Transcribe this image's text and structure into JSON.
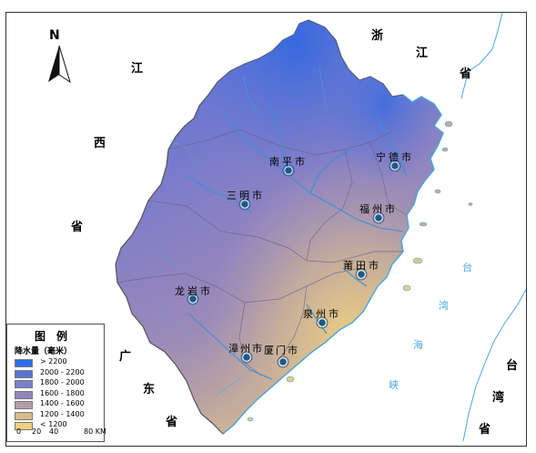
{
  "north_label": "N",
  "province_labels": {
    "jiangxi": [
      "江",
      "西",
      "省"
    ],
    "zhejiang": [
      "浙",
      "江",
      "省"
    ],
    "guangdong": [
      "广",
      "东",
      "省"
    ],
    "taiwan": [
      "台",
      "湾",
      "省"
    ]
  },
  "sea_labels": [
    "台",
    "湾",
    "海",
    "峡"
  ],
  "cities": [
    {
      "name": "南平市"
    },
    {
      "name": "宁德市"
    },
    {
      "name": "三明市"
    },
    {
      "name": "福州市"
    },
    {
      "name": "莆田市"
    },
    {
      "name": "龙岩市"
    },
    {
      "name": "泉州市"
    },
    {
      "name": "漳州市"
    },
    {
      "name": "厦门市"
    }
  ],
  "legend": {
    "title": "图例",
    "subtitle": "降水量（毫米）",
    "classes": [
      {
        "label": "> 2200",
        "color": "#2a6ee6"
      },
      {
        "label": "2000 - 2200",
        "color": "#5a74d6"
      },
      {
        "label": "1800 - 2000",
        "color": "#7a7fcc"
      },
      {
        "label": "1600 - 1800",
        "color": "#9185c0"
      },
      {
        "label": "1400 - 1600",
        "color": "#b19eaa"
      },
      {
        "label": "1200 - 1400",
        "color": "#d8bb90"
      },
      {
        "label": "< 1200",
        "color": "#f0d080"
      }
    ]
  },
  "scale_bar": {
    "ticks": [
      "0",
      "20",
      "40",
      "80 KM"
    ]
  },
  "colors": {
    "sea": "#ffffff",
    "coast_line": "#4aa7e0",
    "river": "#3a8fd8",
    "border": "#555555"
  }
}
